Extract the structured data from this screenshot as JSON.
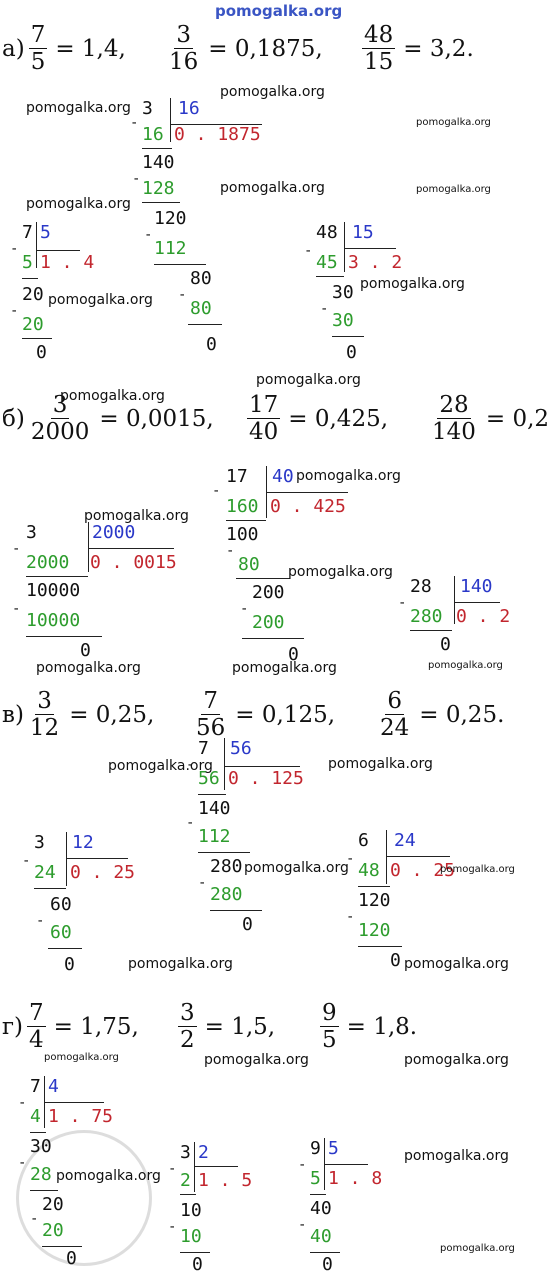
{
  "watermark": "pomogalka.org",
  "sections": [
    {
      "label": "а)",
      "equations": [
        {
          "num": "7",
          "den": "5",
          "result": "= 1,4,"
        },
        {
          "num": "3",
          "den": "16",
          "result": "= 0,1875,"
        },
        {
          "num": "48",
          "den": "15",
          "result": "= 3,2."
        }
      ],
      "divisions": [
        {
          "dividend": "3",
          "divisor": "16",
          "product": "16",
          "quotient": "0 . 1875",
          "rows": [
            "140",
            "128",
            "120",
            "112",
            "80",
            "80",
            "0"
          ]
        },
        {
          "dividend": "7",
          "divisor": "5",
          "product": "5",
          "quotient": "1 . 4",
          "rows": [
            "20",
            "20",
            "0"
          ]
        },
        {
          "dividend": "48",
          "divisor": "15",
          "product": "45",
          "quotient": "3 . 2",
          "rows": [
            "30",
            "30",
            "0"
          ]
        }
      ]
    },
    {
      "label": "б)",
      "equations": [
        {
          "num": "3",
          "den": "2000",
          "result": "= 0,0015,"
        },
        {
          "num": "17",
          "den": "40",
          "result": "= 0,425,"
        },
        {
          "num": "28",
          "den": "140",
          "result": "= 0,2."
        }
      ],
      "divisions": [
        {
          "dividend": "17",
          "divisor": "40",
          "product": "160",
          "quotient": "0 . 425",
          "rows": [
            "100",
            "80",
            "200",
            "200",
            "0"
          ]
        },
        {
          "dividend": "3",
          "divisor": "2000",
          "product": "2000",
          "quotient": "0 . 0015",
          "rows": [
            "10000",
            "10000",
            "0"
          ]
        },
        {
          "dividend": "28",
          "divisor": "140",
          "product": "280",
          "quotient": "0 . 2",
          "rows": [
            "0"
          ]
        }
      ]
    },
    {
      "label": "в)",
      "equations": [
        {
          "num": "3",
          "den": "12",
          "result": "= 0,25,"
        },
        {
          "num": "7",
          "den": "56",
          "result": "= 0,125,"
        },
        {
          "num": "6",
          "den": "24",
          "result": "= 0,25."
        }
      ],
      "divisions": [
        {
          "dividend": "7",
          "divisor": "56",
          "product": "56",
          "quotient": "0 . 125",
          "rows": [
            "140",
            "112",
            "280",
            "280",
            "0"
          ]
        },
        {
          "dividend": "3",
          "divisor": "12",
          "product": "24",
          "quotient": "0 . 25",
          "rows": [
            "60",
            "60",
            "0"
          ]
        },
        {
          "dividend": "6",
          "divisor": "24",
          "product": "48",
          "quotient": "0 . 25",
          "rows": [
            "120",
            "120",
            "0"
          ]
        }
      ]
    },
    {
      "label": "г)",
      "equations": [
        {
          "num": "7",
          "den": "4",
          "result": "= 1,75,"
        },
        {
          "num": "3",
          "den": "2",
          "result": "= 1,5,"
        },
        {
          "num": "9",
          "den": "5",
          "result": "= 1,8."
        }
      ],
      "divisions": [
        {
          "dividend": "7",
          "divisor": "4",
          "product": "4",
          "quotient": "1 . 75",
          "rows": [
            "30",
            "28",
            "20",
            "20",
            "0"
          ]
        },
        {
          "dividend": "3",
          "divisor": "2",
          "product": "2",
          "quotient": "1 . 5",
          "rows": [
            "10",
            "10",
            "0"
          ]
        },
        {
          "dividend": "9",
          "divisor": "5",
          "product": "5",
          "quotient": "1 . 8",
          "rows": [
            "40",
            "40",
            "0"
          ]
        }
      ]
    }
  ]
}
